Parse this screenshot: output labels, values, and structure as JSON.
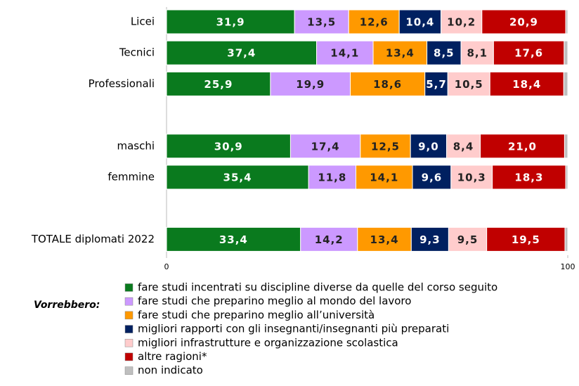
{
  "chart_data": {
    "type": "stacked_bar_horizontal",
    "categories": [
      "Licei",
      "Tecnici",
      "Professionali",
      null,
      "maschi",
      "femmine",
      null,
      "TOTALE diplomati 2022"
    ],
    "xlim": [
      0,
      100
    ],
    "xticks": [
      0,
      100
    ],
    "legend_title": "Vorrebbero:",
    "series": [
      {
        "name": "fare studi incentrati su discipline diverse da quelle del corso seguito",
        "color": "#0a7a1e",
        "values": [
          31.9,
          37.4,
          25.9,
          null,
          30.9,
          35.4,
          null,
          33.4
        ],
        "value_labels": [
          "31,9",
          "37,4",
          "25,9",
          null,
          "30,9",
          "35,4",
          null,
          "33,4"
        ]
      },
      {
        "name": "fare studi che preparino meglio al mondo del lavoro",
        "color": "#cc99ff",
        "values": [
          13.5,
          14.1,
          19.9,
          null,
          17.4,
          11.8,
          null,
          14.2
        ],
        "value_labels": [
          "13,5",
          "14,1",
          "19,9",
          null,
          "17,4",
          "11,8",
          null,
          "14,2"
        ]
      },
      {
        "name": "fare studi che preparino meglio all’università",
        "color": "#ff9900",
        "values": [
          12.6,
          13.4,
          18.6,
          null,
          12.5,
          14.1,
          null,
          13.4
        ],
        "value_labels": [
          "12,6",
          "13,4",
          "18,6",
          null,
          "12,5",
          "14,1",
          null,
          "13,4"
        ]
      },
      {
        "name": "migliori rapporti con gli insegnanti/insegnanti più preparati",
        "color": "#002060",
        "values": [
          10.4,
          8.5,
          5.7,
          null,
          9.0,
          9.6,
          null,
          9.3
        ],
        "value_labels": [
          "10,4",
          "8,5",
          "5,7",
          null,
          "9,0",
          "9,6",
          null,
          "9,3"
        ]
      },
      {
        "name": "migliori infrastrutture e organizzazione scolastica",
        "color": "#ffcccc",
        "values": [
          10.2,
          8.1,
          10.5,
          null,
          8.4,
          10.3,
          null,
          9.5
        ],
        "value_labels": [
          "10,2",
          "8,1",
          "10,5",
          null,
          "8,4",
          "10,3",
          null,
          "9,5"
        ]
      },
      {
        "name": "altre ragioni*",
        "color": "#c00000",
        "values": [
          20.9,
          17.6,
          18.4,
          null,
          21.0,
          18.3,
          null,
          19.5
        ],
        "value_labels": [
          "20,9",
          "17,6",
          "18,4",
          null,
          "21,0",
          "18,3",
          null,
          "19,5"
        ]
      },
      {
        "name": "non indicato",
        "color": "#bfbfbf",
        "values": [
          0.5,
          0.9,
          1.0,
          null,
          0.8,
          0.5,
          null,
          0.7
        ]
      }
    ]
  }
}
